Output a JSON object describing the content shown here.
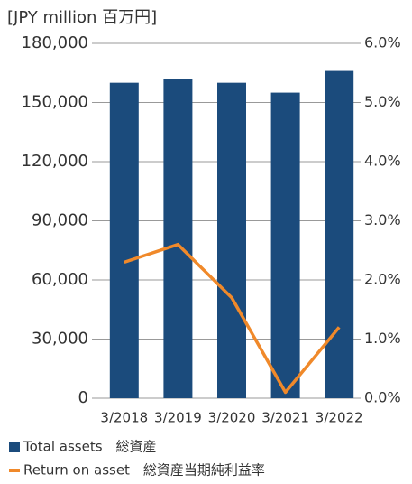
{
  "chart_data": {
    "type": "bar-line",
    "y_axis_label": "[JPY million 百万円]",
    "categories": [
      "3/2018",
      "3/2019",
      "3/2020",
      "3/2021",
      "3/2022"
    ],
    "series": [
      {
        "name": "Total assets　総資産",
        "type": "bar",
        "color": "#1b4b7c",
        "values": [
          160000,
          162000,
          160000,
          155000,
          166000
        ]
      },
      {
        "name": "Return on asset　総資産当期純利益率",
        "type": "line",
        "axis": "y2",
        "color": "#f0892a",
        "values": [
          2.3,
          2.6,
          1.7,
          0.1,
          1.2
        ]
      }
    ],
    "ylim": [
      0,
      180000
    ],
    "yticks": [
      0,
      {
        "value": 30000,
        "label": "30,000"
      },
      {
        "value": 60000,
        "label": "60,000"
      },
      {
        "value": 90000,
        "label": "90,000"
      },
      {
        "value": 120000,
        "label": "120,000"
      },
      {
        "value": 150000,
        "label": "150,000"
      },
      {
        "value": 180000,
        "label": "180,000"
      }
    ],
    "y2lim": [
      0,
      6
    ],
    "y2ticks": [
      {
        "value": 0,
        "label": "0.0%"
      },
      {
        "value": 1,
        "label": "1.0%"
      },
      {
        "value": 2,
        "label": "2.0%"
      },
      {
        "value": 3,
        "label": "3.0%"
      },
      {
        "value": 4,
        "label": "4.0%"
      },
      {
        "value": 5,
        "label": "5.0%"
      },
      {
        "value": 6,
        "label": "6.0%"
      }
    ],
    "grid": true
  }
}
